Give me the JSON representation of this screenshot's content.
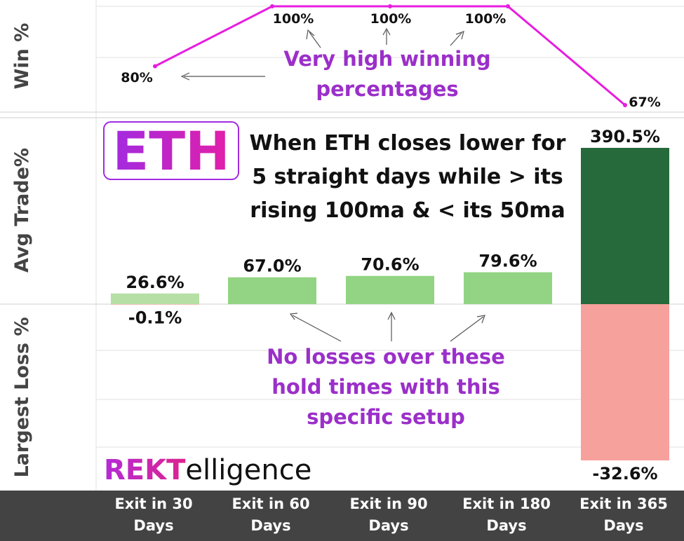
{
  "chart_data": [
    {
      "type": "line",
      "ylabel": "Win %",
      "categories": [
        "Exit in 30 Days",
        "Exit in 60 Days",
        "Exit in 90 Days",
        "Exit in 180 Days",
        "Exit in 365 Days"
      ],
      "values": [
        80,
        100,
        100,
        100,
        67
      ],
      "data_labels": [
        "80%",
        "100%",
        "100%",
        "100%",
        "67%"
      ],
      "annotation": "Very high winning percentages",
      "color": "#e81ce0"
    },
    {
      "type": "bar",
      "ylabel": "Avg Trade%",
      "categories": [
        "Exit in 30 Days",
        "Exit in 60 Days",
        "Exit in 90 Days",
        "Exit in 180 Days",
        "Exit in 365 Days"
      ],
      "values": [
        26.6,
        67.0,
        70.6,
        79.6,
        390.5
      ],
      "data_labels": [
        "26.6%",
        "67.0%",
        "70.6%",
        "79.6%",
        "390.5%"
      ],
      "title": "When ETH closes lower for 5 straight days while > its rising 100ma & < its 50ma",
      "colors": [
        "#b5dfa5",
        "#92d483",
        "#92d483",
        "#92d483",
        "#26693b"
      ]
    },
    {
      "type": "bar",
      "ylabel": "Largest Loss %",
      "categories": [
        "Exit in 30 Days",
        "Exit in 60 Days",
        "Exit in 90 Days",
        "Exit in 180 Days",
        "Exit in 365 Days"
      ],
      "values": [
        -0.1,
        0,
        0,
        0,
        -32.6
      ],
      "data_labels": [
        "-0.1%",
        "",
        "",
        "",
        "-32.6%"
      ],
      "annotation": "No losses over these hold times with this specific setup",
      "colors": [
        "#f4a6a3",
        "#f4a6a3",
        "#f4a6a3",
        "#f4a6a3",
        "#f7a19d"
      ]
    }
  ],
  "eth_badge": "ETH",
  "title_lines": [
    "When ETH closes lower for",
    "5 straight days while > its",
    "rising 100ma & < its 50ma"
  ],
  "annotation_win_lines": [
    "Very high winning",
    "percentages"
  ],
  "annotation_loss_lines": [
    "No losses over these",
    "hold times with this",
    "specific setup"
  ],
  "brand": {
    "part1": "REKT",
    "part2": "elligence"
  },
  "x_categories": [
    [
      "Exit in 30",
      "Days"
    ],
    [
      "Exit in 60",
      "Days"
    ],
    [
      "Exit in 90",
      "Days"
    ],
    [
      "Exit in 180",
      "Days"
    ],
    [
      "Exit in 365",
      "Days"
    ]
  ],
  "colors": {
    "line": "#e81ce0",
    "annotation": "#9b2fc9",
    "footer_bg": "#434343"
  }
}
